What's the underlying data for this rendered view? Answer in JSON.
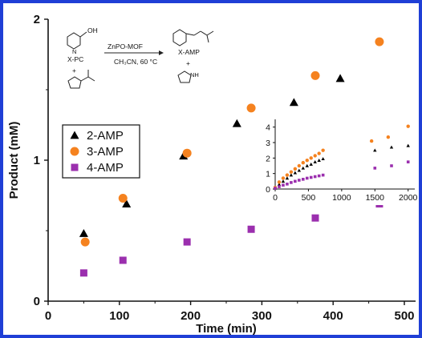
{
  "chart_data": [
    {
      "type": "scatter",
      "xlabel": "Time (min)",
      "ylabel": "Product (mM)",
      "xlim": [
        0,
        500
      ],
      "ylim": [
        0,
        2
      ],
      "x_ticks": [
        "0",
        "100",
        "200",
        "300",
        "400",
        "500"
      ],
      "y_ticks": [
        "0",
        "1",
        "2"
      ],
      "legend_position": "left",
      "series": [
        {
          "name": "2-AMP",
          "marker": "triangle",
          "color": "#000000",
          "points": [
            [
              50,
              0.48
            ],
            [
              110,
              0.69
            ],
            [
              190,
              1.03
            ],
            [
              265,
              1.26
            ],
            [
              345,
              1.41
            ],
            [
              410,
              1.58
            ]
          ]
        },
        {
          "name": "3-AMP",
          "marker": "circle",
          "color": "#f5821f",
          "points": [
            [
              52,
              0.42
            ],
            [
              105,
              0.73
            ],
            [
              195,
              1.05
            ],
            [
              285,
              1.37
            ],
            [
              375,
              1.6
            ],
            [
              465,
              1.84
            ]
          ]
        },
        {
          "name": "4-AMP",
          "marker": "square",
          "color": "#9b2fae",
          "points": [
            [
              50,
              0.2
            ],
            [
              105,
              0.29
            ],
            [
              195,
              0.42
            ],
            [
              285,
              0.51
            ],
            [
              375,
              0.59
            ],
            [
              465,
              0.69
            ]
          ]
        }
      ]
    },
    {
      "type": "scatter",
      "role": "inset",
      "xlim": [
        0,
        2100
      ],
      "ylim": [
        0,
        4.5
      ],
      "x_ticks": [
        "0",
        "500",
        "1000",
        "1500",
        "2000"
      ],
      "y_ticks": [
        "0",
        "1",
        "2",
        "3",
        "4"
      ],
      "series": [
        {
          "name": "2-AMP",
          "marker": "triangle",
          "color": "#000000",
          "points": [
            [
              0,
              0.05
            ],
            [
              60,
              0.3
            ],
            [
              120,
              0.5
            ],
            [
              180,
              0.7
            ],
            [
              240,
              0.9
            ],
            [
              300,
              1.05
            ],
            [
              360,
              1.2
            ],
            [
              420,
              1.35
            ],
            [
              480,
              1.5
            ],
            [
              540,
              1.6
            ],
            [
              600,
              1.75
            ],
            [
              660,
              1.85
            ],
            [
              720,
              1.95
            ],
            [
              1500,
              2.5
            ],
            [
              1750,
              2.7
            ],
            [
              2000,
              2.8
            ]
          ]
        },
        {
          "name": "3-AMP",
          "marker": "circle",
          "color": "#f5821f",
          "points": [
            [
              0,
              0.1
            ],
            [
              60,
              0.45
            ],
            [
              120,
              0.7
            ],
            [
              180,
              0.9
            ],
            [
              240,
              1.1
            ],
            [
              300,
              1.3
            ],
            [
              360,
              1.5
            ],
            [
              420,
              1.7
            ],
            [
              480,
              1.85
            ],
            [
              540,
              2.0
            ],
            [
              600,
              2.15
            ],
            [
              660,
              2.3
            ],
            [
              720,
              2.5
            ],
            [
              1450,
              3.1
            ],
            [
              1700,
              3.35
            ],
            [
              2000,
              4.05
            ]
          ]
        },
        {
          "name": "4-AMP",
          "marker": "square",
          "color": "#9b2fae",
          "points": [
            [
              0,
              0.05
            ],
            [
              60,
              0.15
            ],
            [
              120,
              0.25
            ],
            [
              180,
              0.32
            ],
            [
              240,
              0.42
            ],
            [
              300,
              0.5
            ],
            [
              360,
              0.57
            ],
            [
              420,
              0.63
            ],
            [
              480,
              0.7
            ],
            [
              540,
              0.75
            ],
            [
              600,
              0.8
            ],
            [
              660,
              0.85
            ],
            [
              720,
              0.9
            ],
            [
              1500,
              1.35
            ],
            [
              1750,
              1.5
            ],
            [
              2000,
              1.75
            ]
          ]
        }
      ]
    }
  ],
  "scheme": {
    "reactant1": "X-PC",
    "reactant1_group": "OH",
    "plus1": "+",
    "catalyst": "ZnPO-MOF",
    "conditions": "CH₃CN, 60 °C",
    "product": "X-AMP",
    "plus2": "+",
    "byproduct_label": "NH",
    "ring_atom": "N"
  }
}
